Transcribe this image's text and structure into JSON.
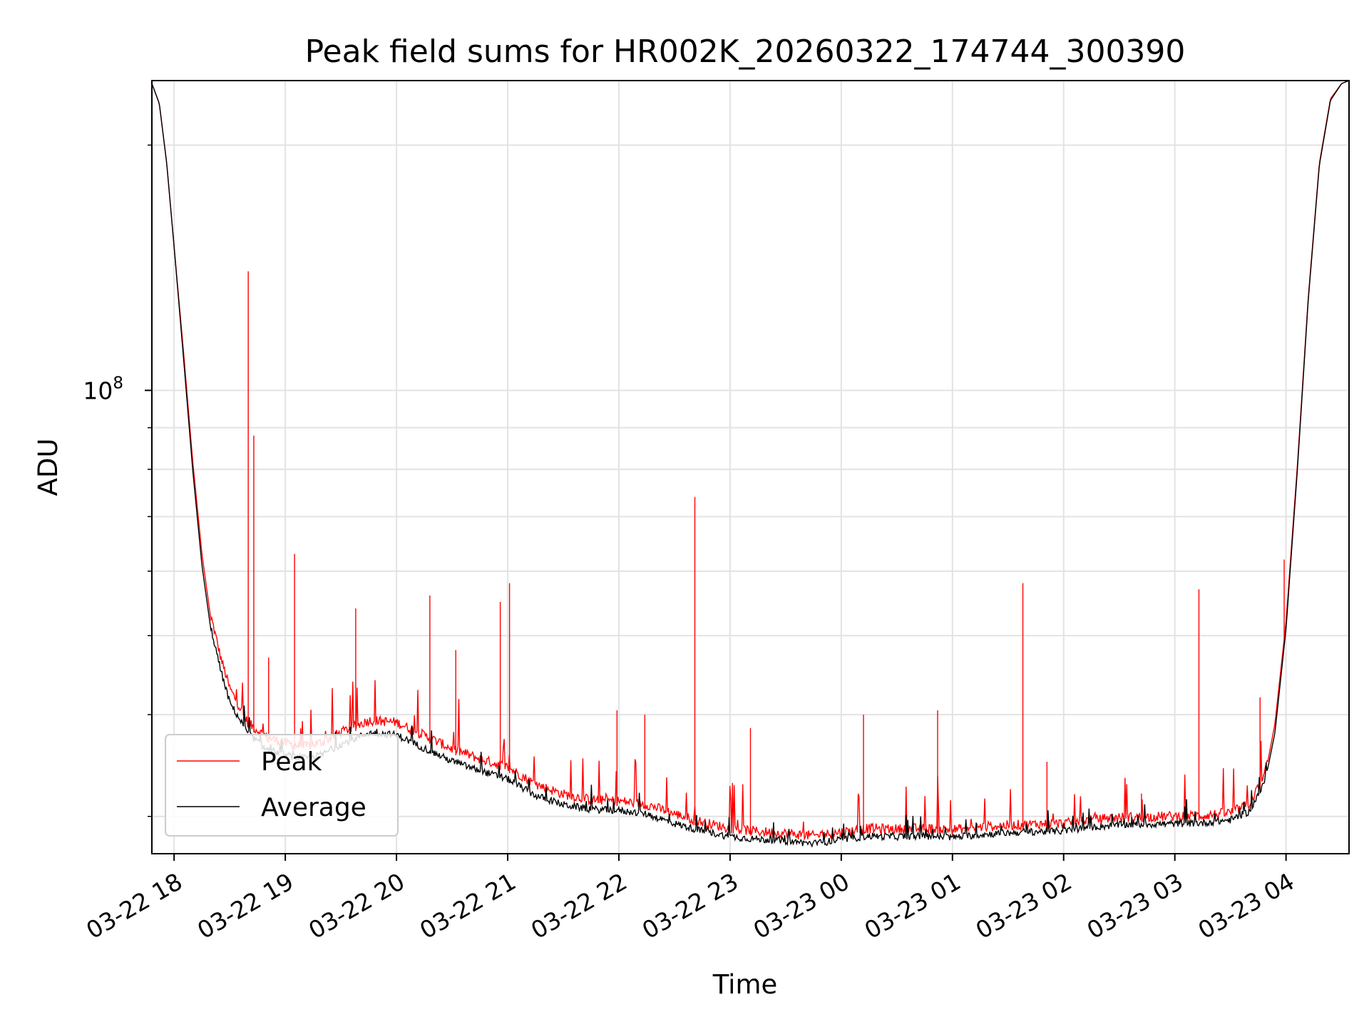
{
  "chart_data": {
    "type": "line",
    "title": "Peak field sums for HR002K_20260322_174744_300390",
    "xlabel": "Time",
    "ylabel": "ADU",
    "yscale": "log",
    "grid": true,
    "legend_position": "lower-left",
    "xlim": [
      "2026-03-22 17:48",
      "2026-03-23 04:34"
    ],
    "ylim": [
      27000000,
      240000000
    ],
    "x_ticks": [
      {
        "label": "03-22 18",
        "t": "2026-03-22 18:00"
      },
      {
        "label": "03-22 19",
        "t": "2026-03-22 19:00"
      },
      {
        "label": "03-22 20",
        "t": "2026-03-22 20:00"
      },
      {
        "label": "03-22 21",
        "t": "2026-03-22 21:00"
      },
      {
        "label": "03-22 22",
        "t": "2026-03-22 22:00"
      },
      {
        "label": "03-22 23",
        "t": "2026-03-22 23:00"
      },
      {
        "label": "03-23 00",
        "t": "2026-03-23 00:00"
      },
      {
        "label": "03-23 01",
        "t": "2026-03-23 01:00"
      },
      {
        "label": "03-23 02",
        "t": "2026-03-23 02:00"
      },
      {
        "label": "03-23 03",
        "t": "2026-03-23 03:00"
      },
      {
        "label": "03-23 04",
        "t": "2026-03-23 04:00"
      }
    ],
    "y_major_tick": {
      "base": "10",
      "exp": "8",
      "value": 100000000
    },
    "y_minor_ticks": [
      30000000,
      40000000,
      50000000,
      60000000,
      70000000,
      80000000,
      90000000,
      200000000
    ],
    "series": [
      {
        "name": "Peak",
        "color": "#ff0000",
        "baseline": [
          [
            "2026-03-22 17:48",
            238000000
          ],
          [
            "2026-03-22 17:52",
            225000000
          ],
          [
            "2026-03-22 17:56",
            190000000
          ],
          [
            "2026-03-22 18:00",
            150000000
          ],
          [
            "2026-03-22 18:05",
            112000000
          ],
          [
            "2026-03-22 18:10",
            82000000
          ],
          [
            "2026-03-22 18:15",
            63000000
          ],
          [
            "2026-03-22 18:20",
            52000000
          ],
          [
            "2026-03-22 18:25",
            46500000
          ],
          [
            "2026-03-22 18:30",
            42500000
          ],
          [
            "2026-03-22 18:40",
            38500000
          ],
          [
            "2026-03-22 18:50",
            37000000
          ],
          [
            "2026-03-22 19:00",
            36400000
          ],
          [
            "2026-03-22 19:10",
            36000000
          ],
          [
            "2026-03-22 19:20",
            36500000
          ],
          [
            "2026-03-22 19:30",
            37500000
          ],
          [
            "2026-03-22 19:45",
            38800000
          ],
          [
            "2026-03-22 20:00",
            38600000
          ],
          [
            "2026-03-22 20:15",
            37200000
          ],
          [
            "2026-03-22 20:30",
            35800000
          ],
          [
            "2026-03-22 20:45",
            34800000
          ],
          [
            "2026-03-22 21:00",
            34000000
          ],
          [
            "2026-03-22 21:15",
            32400000
          ],
          [
            "2026-03-22 21:30",
            31500000
          ],
          [
            "2026-03-22 21:45",
            31000000
          ],
          [
            "2026-03-22 22:00",
            30900000
          ],
          [
            "2026-03-22 22:15",
            30600000
          ],
          [
            "2026-03-22 22:30",
            29800000
          ],
          [
            "2026-03-22 22:45",
            29100000
          ],
          [
            "2026-03-22 23:00",
            28600000
          ],
          [
            "2026-03-22 23:15",
            28350000
          ],
          [
            "2026-03-22 23:30",
            28200000
          ],
          [
            "2026-03-22 23:45",
            28000000
          ],
          [
            "2026-03-23 00:00",
            28300000
          ],
          [
            "2026-03-23 00:15",
            28600000
          ],
          [
            "2026-03-23 00:30",
            28550000
          ],
          [
            "2026-03-23 00:45",
            28600000
          ],
          [
            "2026-03-23 01:00",
            28500000
          ],
          [
            "2026-03-23 01:15",
            28700000
          ],
          [
            "2026-03-23 01:30",
            28850000
          ],
          [
            "2026-03-23 01:45",
            28950000
          ],
          [
            "2026-03-23 02:00",
            29000000
          ],
          [
            "2026-03-23 02:15",
            29300000
          ],
          [
            "2026-03-23 02:30",
            29500000
          ],
          [
            "2026-03-23 02:45",
            29550000
          ],
          [
            "2026-03-23 03:00",
            29600000
          ],
          [
            "2026-03-23 03:15",
            29650000
          ],
          [
            "2026-03-23 03:30",
            29900000
          ],
          [
            "2026-03-23 03:40",
            30600000
          ],
          [
            "2026-03-23 03:48",
            33000000
          ],
          [
            "2026-03-23 03:54",
            39000000
          ],
          [
            "2026-03-23 04:00",
            52000000
          ],
          [
            "2026-03-23 04:06",
            80000000
          ],
          [
            "2026-03-23 04:12",
            130000000
          ],
          [
            "2026-03-23 04:18",
            190000000
          ],
          [
            "2026-03-23 04:24",
            228000000
          ],
          [
            "2026-03-23 04:30",
            238000000
          ],
          [
            "2026-03-23 04:34",
            240000000
          ]
        ],
        "spikes": [
          [
            "2026-03-22 18:40",
            140000000
          ],
          [
            "2026-03-22 18:43",
            88000000
          ],
          [
            "2026-03-22 19:05",
            63000000
          ],
          [
            "2026-03-22 18:51",
            47000000
          ],
          [
            "2026-03-22 19:38",
            54000000
          ],
          [
            "2026-03-22 20:18",
            56000000
          ],
          [
            "2026-03-22 20:32",
            48000000
          ],
          [
            "2026-03-22 20:56",
            55000000
          ],
          [
            "2026-03-22 21:01",
            58000000
          ],
          [
            "2026-03-22 21:59",
            40500000
          ],
          [
            "2026-03-22 22:14",
            40000000
          ],
          [
            "2026-03-22 22:41",
            74000000
          ],
          [
            "2026-03-22 23:11",
            38500000
          ],
          [
            "2026-03-23 00:12",
            40000000
          ],
          [
            "2026-03-23 00:52",
            40500000
          ],
          [
            "2026-03-23 01:38",
            58000000
          ],
          [
            "2026-03-23 01:51",
            35000000
          ],
          [
            "2026-03-23 02:42",
            32000000
          ],
          [
            "2026-03-23 03:13",
            57000000
          ],
          [
            "2026-03-23 03:46",
            42000000
          ],
          [
            "2026-03-23 03:59",
            62000000
          ]
        ]
      },
      {
        "name": "Average",
        "color": "#000000",
        "baseline": [
          [
            "2026-03-22 17:48",
            238000000
          ],
          [
            "2026-03-22 17:52",
            225000000
          ],
          [
            "2026-03-22 17:56",
            190000000
          ],
          [
            "2026-03-22 18:00",
            150000000
          ],
          [
            "2026-03-22 18:05",
            110000000
          ],
          [
            "2026-03-22 18:10",
            80000000
          ],
          [
            "2026-03-22 18:15",
            61000000
          ],
          [
            "2026-03-22 18:20",
            50500000
          ],
          [
            "2026-03-22 18:25",
            45000000
          ],
          [
            "2026-03-22 18:30",
            41000000
          ],
          [
            "2026-03-22 18:40",
            37500000
          ],
          [
            "2026-03-22 18:50",
            35900000
          ],
          [
            "2026-03-22 19:00",
            35300000
          ],
          [
            "2026-03-22 19:10",
            35000000
          ],
          [
            "2026-03-22 19:20",
            35400000
          ],
          [
            "2026-03-22 19:30",
            36400000
          ],
          [
            "2026-03-22 19:45",
            37600000
          ],
          [
            "2026-03-22 20:00",
            37400000
          ],
          [
            "2026-03-22 20:15",
            36000000
          ],
          [
            "2026-03-22 20:30",
            34700000
          ],
          [
            "2026-03-22 20:45",
            33800000
          ],
          [
            "2026-03-22 21:00",
            33000000
          ],
          [
            "2026-03-22 21:15",
            31500000
          ],
          [
            "2026-03-22 21:30",
            30700000
          ],
          [
            "2026-03-22 21:45",
            30300000
          ],
          [
            "2026-03-22 22:00",
            30200000
          ],
          [
            "2026-03-22 22:15",
            29900000
          ],
          [
            "2026-03-22 22:30",
            29100000
          ],
          [
            "2026-03-22 22:45",
            28500000
          ],
          [
            "2026-03-22 23:00",
            28050000
          ],
          [
            "2026-03-22 23:15",
            27850000
          ],
          [
            "2026-03-22 23:30",
            27700000
          ],
          [
            "2026-03-22 23:45",
            27500000
          ],
          [
            "2026-03-23 00:00",
            27800000
          ],
          [
            "2026-03-23 00:15",
            28100000
          ],
          [
            "2026-03-23 00:30",
            28050000
          ],
          [
            "2026-03-23 00:45",
            28100000
          ],
          [
            "2026-03-23 01:00",
            28000000
          ],
          [
            "2026-03-23 01:15",
            28200000
          ],
          [
            "2026-03-23 01:30",
            28350000
          ],
          [
            "2026-03-23 01:45",
            28450000
          ],
          [
            "2026-03-23 02:00",
            28500000
          ],
          [
            "2026-03-23 02:15",
            28800000
          ],
          [
            "2026-03-23 02:30",
            29000000
          ],
          [
            "2026-03-23 02:45",
            29050000
          ],
          [
            "2026-03-23 03:00",
            29100000
          ],
          [
            "2026-03-23 03:15",
            29150000
          ],
          [
            "2026-03-23 03:30",
            29400000
          ],
          [
            "2026-03-23 03:40",
            30100000
          ],
          [
            "2026-03-23 03:48",
            32500000
          ],
          [
            "2026-03-23 03:54",
            38000000
          ],
          [
            "2026-03-23 04:00",
            51000000
          ],
          [
            "2026-03-23 04:06",
            79000000
          ],
          [
            "2026-03-23 04:12",
            129000000
          ],
          [
            "2026-03-23 04:18",
            189000000
          ],
          [
            "2026-03-23 04:24",
            227000000
          ],
          [
            "2026-03-23 04:30",
            238000000
          ],
          [
            "2026-03-23 04:34",
            240000000
          ]
        ]
      }
    ]
  }
}
